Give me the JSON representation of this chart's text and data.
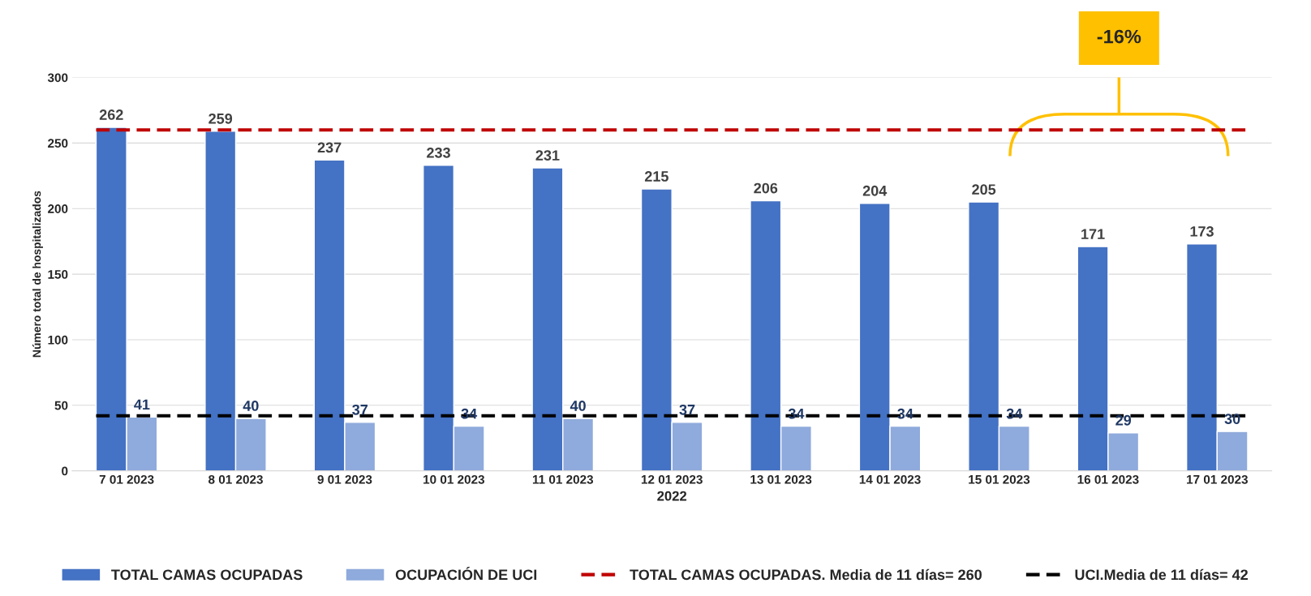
{
  "chart_data": {
    "type": "bar",
    "ylabel": "Número total de hospitalizados",
    "xlabel": "2022",
    "categories": [
      "7 01 2023",
      "8 01 2023",
      "9 01 2023",
      "10 01 2023",
      "11 01 2023",
      "12 01 2023",
      "13 01 2023",
      "14 01 2023",
      "15 01 2023",
      "16 01 2023",
      "17 01 2023"
    ],
    "series": [
      {
        "name": "TOTAL CAMAS OCUPADAS",
        "color": "#4472c4",
        "values": [
          262,
          259,
          237,
          233,
          231,
          215,
          206,
          204,
          205,
          171,
          173
        ]
      },
      {
        "name": "OCUPACIÓN DE UCI",
        "color": "#8faadc",
        "values": [
          41,
          40,
          37,
          34,
          40,
          37,
          34,
          34,
          34,
          29,
          30
        ]
      }
    ],
    "ref_lines": [
      {
        "axis": "y",
        "value": 260,
        "label": "TOTAL CAMAS OCUPADAS. Media de 11 días= 260",
        "color": "#c00000",
        "line_style": "dashed"
      },
      {
        "axis": "y",
        "value": 42,
        "label": "UCI.Media de 11 días= 42",
        "color": "#000000",
        "line_style": "dashed"
      }
    ],
    "annotations": [
      "-16%"
    ],
    "ylim": [
      0,
      300
    ],
    "yticks": [
      0,
      50,
      100,
      150,
      200,
      250,
      300
    ],
    "grid": "y",
    "legend": "bottom",
    "data_labels": true
  }
}
